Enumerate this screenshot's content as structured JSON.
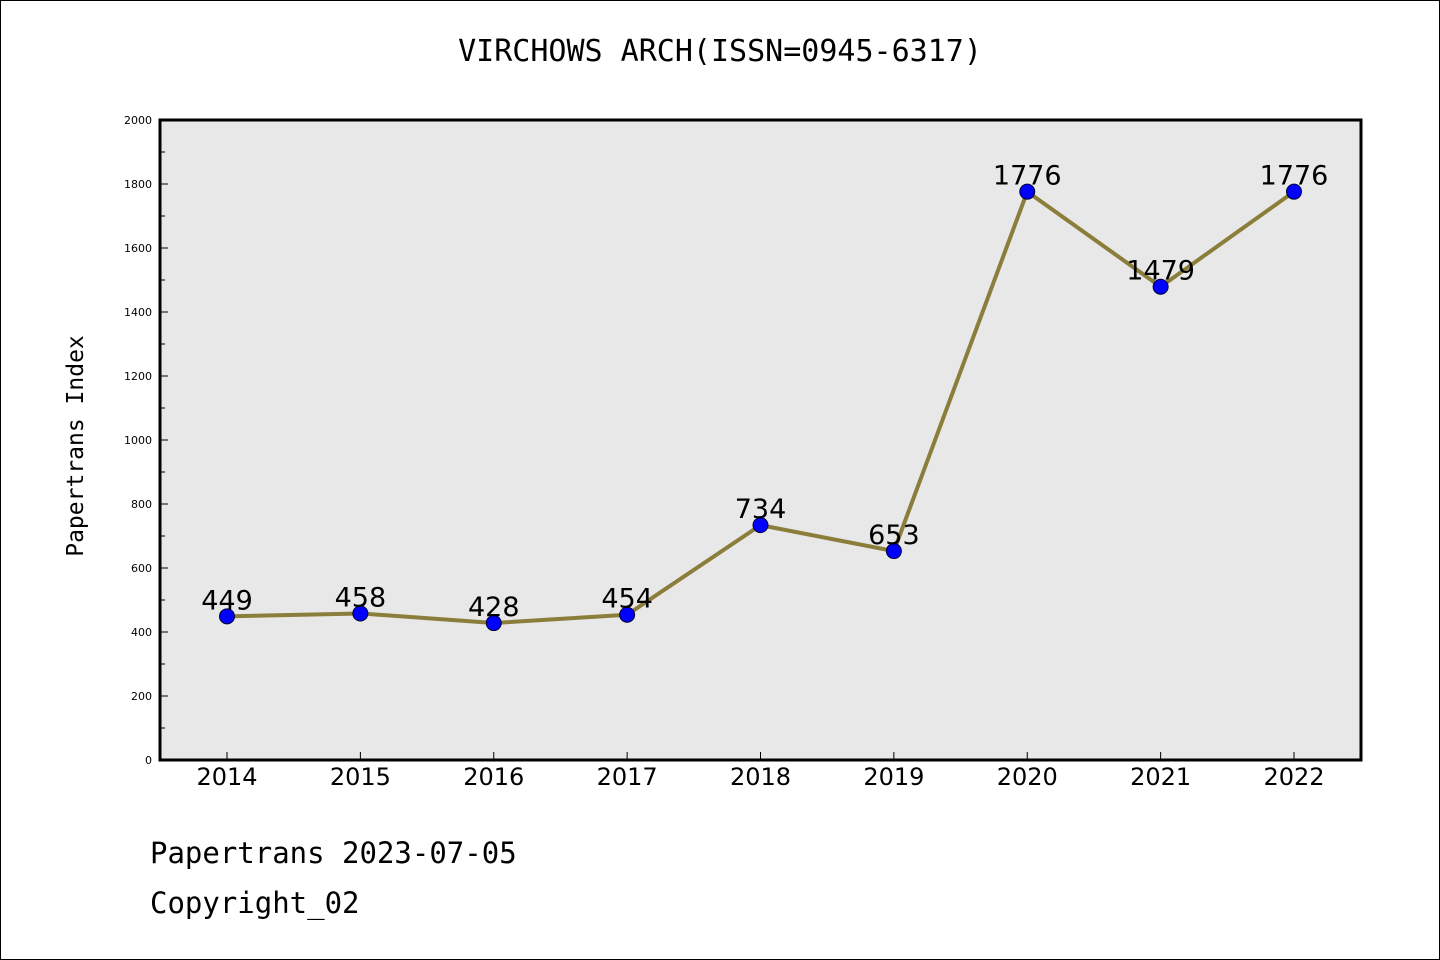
{
  "chart_data": {
    "type": "line",
    "title": "VIRCHOWS ARCH(ISSN=0945-6317)",
    "xlabel": "",
    "ylabel": "Papertrans Index",
    "categories": [
      "2014",
      "2015",
      "2016",
      "2017",
      "2018",
      "2019",
      "2020",
      "2021",
      "2022"
    ],
    "series": [
      {
        "values": [
          449,
          458,
          428,
          454,
          734,
          653,
          1776,
          1479,
          1776
        ]
      }
    ],
    "data_labels": [
      "449",
      "458",
      "428",
      "454",
      "734",
      "653",
      "1776",
      "1479",
      "1776"
    ],
    "ylim": [
      0,
      2000
    ],
    "yticks": [
      0,
      200,
      400,
      600,
      800,
      1000,
      1200,
      1400,
      1600,
      1800,
      2000
    ],
    "grid": false,
    "legend": "none",
    "colors": {
      "line": "#8B7D3A",
      "marker": "#0000FF",
      "plot_background": "#E8E8E8"
    }
  },
  "footer": {
    "date_text": "Papertrans 2023-07-05",
    "copyright_text": "Copyright_02"
  }
}
